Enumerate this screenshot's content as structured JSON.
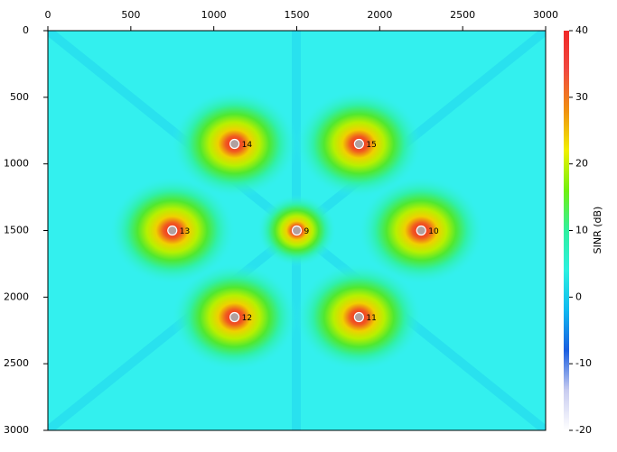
{
  "chart_data": {
    "type": "scatter",
    "x": [
      1500,
      2250,
      1875,
      1125,
      750,
      1125,
      1875
    ],
    "y": [
      1500,
      1500,
      2150,
      2150,
      1500,
      850,
      850
    ],
    "labels": [
      "9",
      "10",
      "11",
      "12",
      "13",
      "14",
      "15"
    ],
    "xlim": [
      0,
      3000
    ],
    "ylim": [
      0,
      3000
    ],
    "xticks": [
      0,
      500,
      1000,
      1500,
      2000,
      2500,
      3000
    ],
    "yticks": [
      0,
      500,
      1000,
      1500,
      2000,
      2500,
      3000
    ],
    "y_inverted": true,
    "x_axis_position": "top",
    "background_color": "#33f0ee",
    "colorbar": {
      "label": "SINR (dB)",
      "lim": [
        -20,
        40
      ],
      "ticks": [
        -20,
        -10,
        0,
        10,
        20,
        30,
        40
      ],
      "colors": [
        "#ffffff",
        "#c8ccf0",
        "#1a5ee0",
        "#10b8f0",
        "#2cf0e0",
        "#30f0a0",
        "#70f010",
        "#f0f000",
        "#f09010",
        "#f04a40",
        "#f02828"
      ]
    }
  }
}
